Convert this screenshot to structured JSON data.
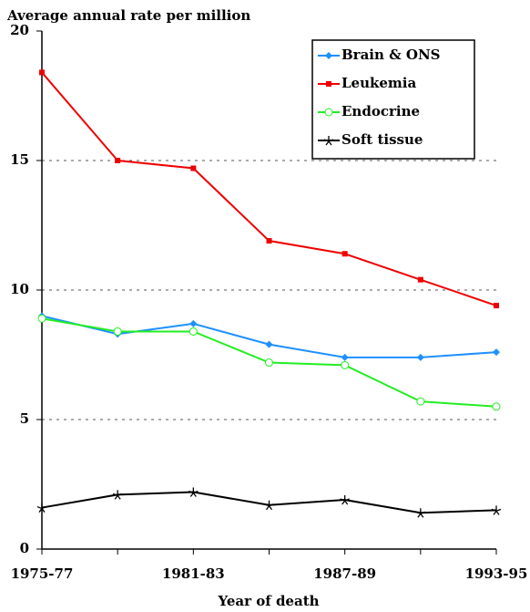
{
  "chart_data": {
    "type": "line",
    "title": "Average annual rate per million",
    "x_label": "Year of death",
    "categories": [
      "1975-77",
      null,
      "1981-83",
      null,
      "1987-89",
      null,
      "1993-95"
    ],
    "series": [
      {
        "name": "Brain & ONS",
        "color": "#1e90ff",
        "marker": "diamond",
        "values": [
          9.0,
          8.3,
          8.7,
          7.9,
          7.4,
          7.4,
          7.6
        ]
      },
      {
        "name": "Leukemia",
        "color": "#ee0000",
        "marker": "square",
        "values": [
          18.4,
          15.0,
          14.7,
          11.9,
          11.4,
          10.4,
          9.4
        ]
      },
      {
        "name": "Endocrine",
        "color": "#22ee22",
        "marker": "circle",
        "values": [
          8.9,
          8.4,
          8.4,
          7.2,
          7.1,
          5.7,
          5.5
        ]
      },
      {
        "name": "Soft tissue",
        "color": "#000000",
        "marker": "star",
        "values": [
          1.6,
          2.1,
          2.2,
          1.7,
          1.9,
          1.4,
          1.5
        ]
      }
    ],
    "ylim": [
      0,
      20
    ],
    "yticks": [
      0,
      5,
      10,
      15,
      20
    ],
    "grid": true,
    "legend": "upper right"
  }
}
